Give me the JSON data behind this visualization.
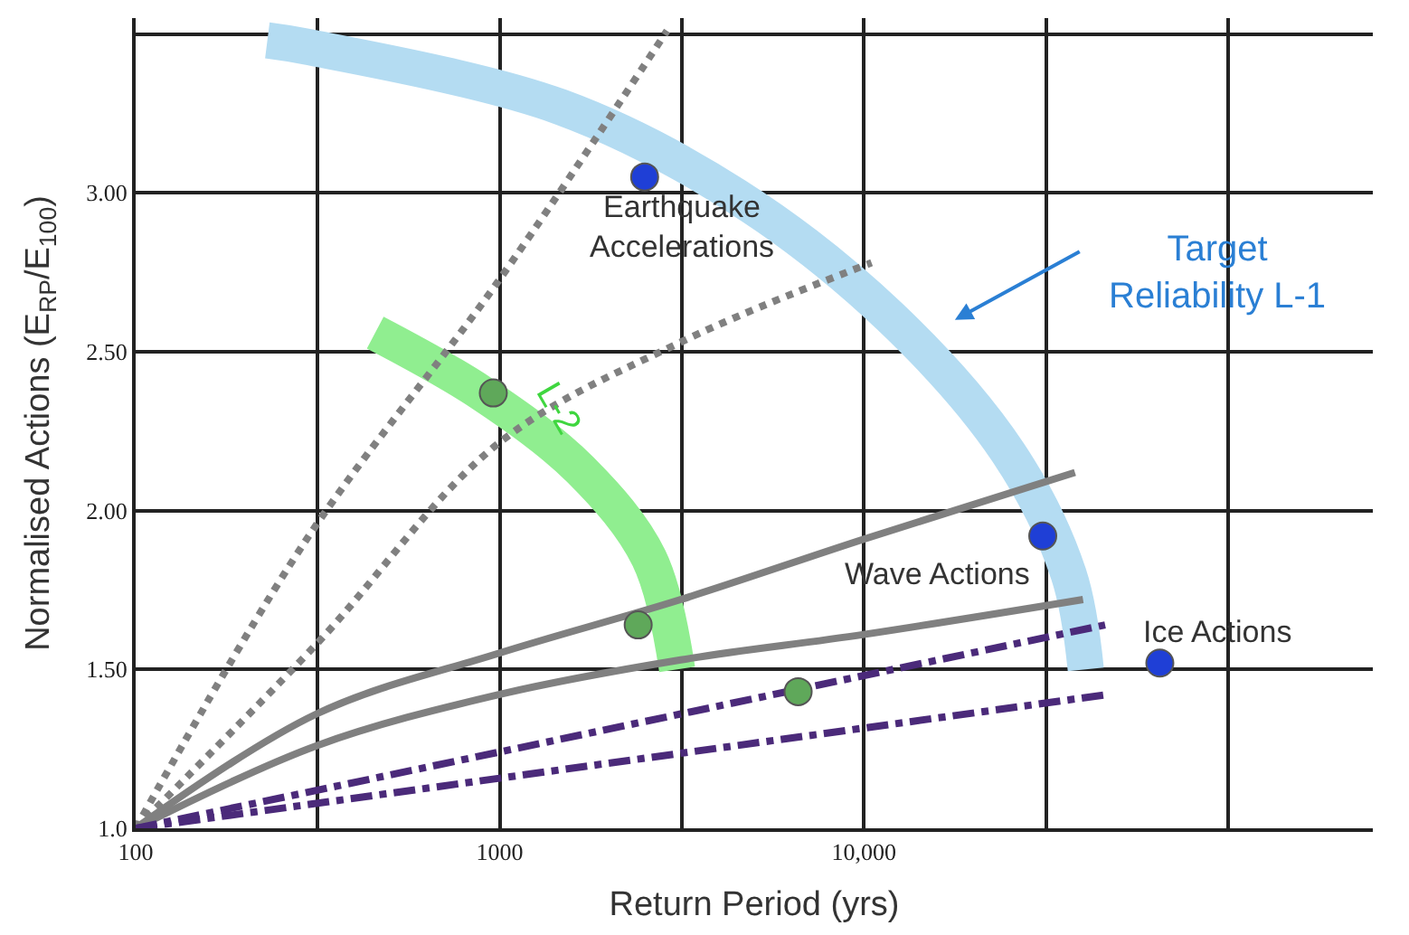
{
  "chart_data": {
    "type": "line",
    "xlabel": "Return Period (yrs)",
    "ylabel": "Normalised Actions (E$_{RP}$/E$_{100}$)",
    "log": "x",
    "grid": true,
    "xlim": [
      100,
      250000
    ],
    "ylim": [
      1.0,
      3.55
    ],
    "xticks": [
      {
        "value": 100,
        "label": "100"
      },
      {
        "value": 316,
        "label": null
      },
      {
        "value": 1000,
        "label": "1000"
      },
      {
        "value": 3162,
        "label": null
      },
      {
        "value": 10000,
        "label": "10,000"
      },
      {
        "value": 31623,
        "label": null
      },
      {
        "value": 100000,
        "label": null
      }
    ],
    "yticks": [
      {
        "value": 1.0,
        "label": "1.0"
      },
      {
        "value": 1.5,
        "label": "1.50"
      },
      {
        "value": 2.0,
        "label": "2.00"
      },
      {
        "value": 2.5,
        "label": "2.50"
      },
      {
        "value": 3.0,
        "label": "3.00"
      },
      {
        "value": 3.5,
        "label": null
      }
    ],
    "series": [
      {
        "color": "#b4dcf2",
        "x": [
          40700,
          36500,
          25000,
          11800,
          4460,
          1470,
          295,
          230
        ],
        "values": [
          1.5,
          1.8,
          2.18,
          2.61,
          2.99,
          3.27,
          3.46,
          3.48
        ]
      },
      {
        "color": "#90ee90",
        "x": [
          3070,
          2570,
          1660,
          890,
          455
        ],
        "values": [
          1.5,
          1.85,
          2.13,
          2.37,
          2.56
        ]
      },
      {
        "color": "#808080",
        "line_style": "dotted",
        "x": [
          100,
          295,
          988,
          2880
        ],
        "values": [
          1.0,
          1.91,
          2.72,
          3.51
        ]
      },
      {
        "color": "#808080",
        "line_style": "dotted",
        "x": [
          100,
          314,
          988,
          3140,
          10500
        ],
        "values": [
          1.0,
          1.58,
          2.21,
          2.53,
          2.78
        ]
      },
      {
        "color": "#808080",
        "line_style": "solid",
        "x": [
          100,
          314,
          988,
          3140,
          10000,
          38000
        ],
        "values": [
          1.0,
          1.36,
          1.55,
          1.72,
          1.91,
          2.12
        ]
      },
      {
        "color": "#808080",
        "line_style": "solid",
        "x": [
          100,
          314,
          988,
          3140,
          10000,
          40000
        ],
        "values": [
          1.0,
          1.26,
          1.42,
          1.53,
          1.61,
          1.72
        ]
      },
      {
        "color": "#4b2a7a",
        "line_style": "dashdot",
        "x": [
          100,
          46000
        ],
        "values": [
          1.0,
          1.64
        ]
      },
      {
        "color": "#4b2a7a",
        "line_style": "dashdot",
        "x": [
          100,
          46000
        ],
        "values": [
          1.0,
          1.42
        ]
      },
      {
        "type": "scatter",
        "color": "#1f3fd6",
        "marker": "circle",
        "x": [
          2500,
          31000,
          65000
        ],
        "values": [
          3.05,
          1.92,
          1.52
        ]
      },
      {
        "type": "scatter",
        "color": "#5fa85a",
        "marker": "circle",
        "x": [
          960,
          2400,
          6600
        ],
        "values": [
          2.37,
          1.64,
          1.43
        ]
      }
    ],
    "annotations": [
      "Earthquake\nAccelerations",
      "Wave Actions",
      "Ice Actions",
      "Target\nReliability L-1",
      "L-2"
    ]
  }
}
